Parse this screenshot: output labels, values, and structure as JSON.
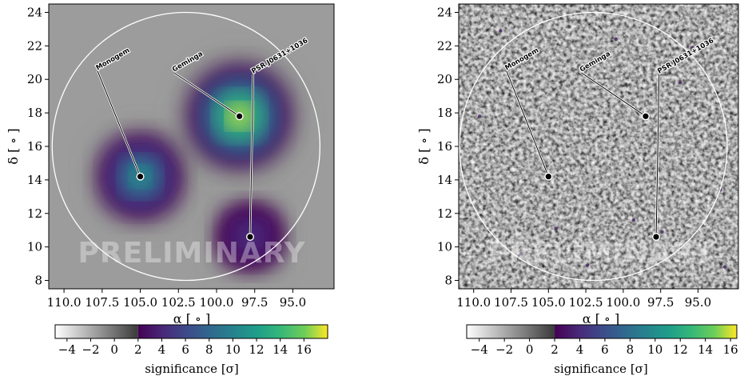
{
  "chart_data": [
    {
      "type": "heatmap",
      "panel": "left",
      "variant": "smooth",
      "xlabel": "α [ ∘ ]",
      "ylabel": "δ [ ∘ ]",
      "xlim": [
        111.0,
        92.3
      ],
      "ylim": [
        7.5,
        24.5
      ],
      "xticks": [
        110.0,
        107.5,
        105.0,
        102.5,
        100.0,
        97.5,
        95.0
      ],
      "xtick_labels": [
        "110.0",
        "107.5",
        "105.0",
        "102.5",
        "100.0",
        "97.5",
        "95.0"
      ],
      "yticks": [
        8,
        10,
        12,
        14,
        16,
        18,
        20,
        22,
        24
      ],
      "ytick_labels": [
        "8",
        "10",
        "12",
        "14",
        "16",
        "18",
        "20",
        "22",
        "24"
      ],
      "roi_circle": {
        "ra": 102.0,
        "dec": 16.0,
        "radius_deg": 8.0
      },
      "sources": [
        {
          "name": "Monogem",
          "ra": 105.0,
          "dec": 14.2,
          "label_ra": 107.8,
          "label_dec": 20.5
        },
        {
          "name": "Geminga",
          "ra": 98.5,
          "dec": 17.8,
          "label_ra": 102.8,
          "label_dec": 20.4
        },
        {
          "name": "PSR J0631+1036",
          "ra": 97.8,
          "dec": 10.6,
          "label_ra": 97.6,
          "label_dec": 20.3
        }
      ],
      "blobs": [
        {
          "ra": 105.0,
          "dec": 14.2,
          "peak_sigma": 10.5
        },
        {
          "ra": 98.5,
          "dec": 17.8,
          "peak_sigma": 17.0
        },
        {
          "ra": 97.8,
          "dec": 10.6,
          "peak_sigma": 4.5
        }
      ],
      "watermark": "PRELIMINARY",
      "colorbar": {
        "label": "significance [σ]",
        "range": [
          -5,
          18
        ],
        "ticks": [
          -4,
          -2,
          0,
          2,
          4,
          6,
          8,
          10,
          12,
          14,
          16
        ],
        "tick_labels": [
          "−4",
          "−2",
          "0",
          "2",
          "4",
          "6",
          "8",
          "10",
          "12",
          "14",
          "16"
        ],
        "colormap": "white-to-gray below 2, viridis from 2 up"
      }
    },
    {
      "type": "heatmap",
      "panel": "right",
      "variant": "noise",
      "xlabel": "α [ ∘ ]",
      "ylabel": "δ [ ∘ ]",
      "xlim": [
        111.0,
        92.3
      ],
      "ylim": [
        7.5,
        24.5
      ],
      "xticks": [
        110.0,
        107.5,
        105.0,
        102.5,
        100.0,
        97.5,
        95.0
      ],
      "xtick_labels": [
        "110.0",
        "107.5",
        "105.0",
        "102.5",
        "100.0",
        "97.5",
        "95.0"
      ],
      "yticks": [
        8,
        10,
        12,
        14,
        16,
        18,
        20,
        22,
        24
      ],
      "ytick_labels": [
        "8",
        "10",
        "12",
        "14",
        "16",
        "18",
        "20",
        "22",
        "24"
      ],
      "roi_circle": {
        "ra": 102.0,
        "dec": 16.0,
        "radius_deg": 8.0
      },
      "sources": [
        {
          "name": "Monogem",
          "ra": 105.0,
          "dec": 14.2,
          "label_ra": 107.8,
          "label_dec": 20.5
        },
        {
          "name": "Geminga",
          "ra": 98.5,
          "dec": 17.8,
          "label_ra": 102.8,
          "label_dec": 20.4
        },
        {
          "name": "PSR J0631+1036",
          "ra": 97.8,
          "dec": 10.6,
          "label_ra": 97.6,
          "label_dec": 20.3
        }
      ],
      "watermark": "PRELIMINARY",
      "colorbar": {
        "label": "significance [σ]",
        "range": [
          -5,
          16.5
        ],
        "ticks": [
          -4,
          -2,
          0,
          2,
          4,
          6,
          8,
          10,
          12,
          14,
          16
        ],
        "tick_labels": [
          "−4",
          "−2",
          "0",
          "2",
          "4",
          "6",
          "8",
          "10",
          "12",
          "14",
          "16"
        ],
        "colormap": "white-to-gray below 2, viridis from 2 up"
      }
    }
  ]
}
